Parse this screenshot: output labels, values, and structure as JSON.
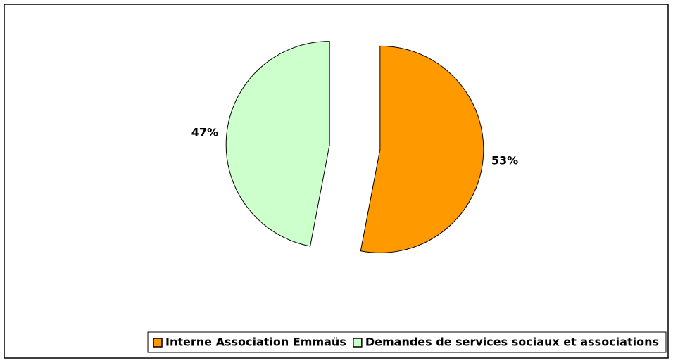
{
  "chart_data": {
    "type": "pie",
    "categories": [
      "Interne Association Emmaüs",
      "Demandes de services sociaux et associations"
    ],
    "values": [
      53,
      47
    ],
    "value_labels": [
      "53%",
      "47%"
    ],
    "colors": [
      "#ff9900",
      "#ccffcc"
    ],
    "legend": "bottom"
  }
}
